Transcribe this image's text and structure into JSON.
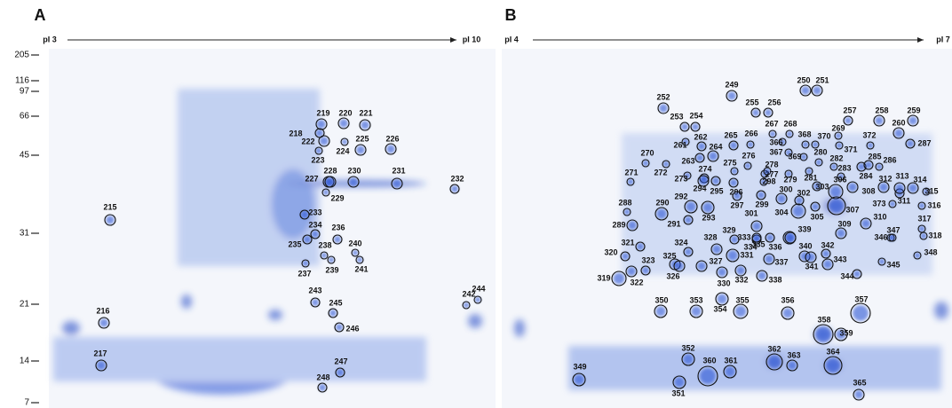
{
  "panels": [
    {
      "label": "A",
      "pi_start": "pI 3",
      "pi_end": "pI 10",
      "spots": [
        "215",
        "216",
        "217",
        "218",
        "219",
        "220",
        "221",
        "222",
        "223",
        "224",
        "225",
        "226",
        "227",
        "228",
        "229",
        "230",
        "231",
        "232",
        "233",
        "234",
        "235",
        "236",
        "237",
        "238",
        "239",
        "240",
        "241",
        "242",
        "243",
        "244",
        "245",
        "246",
        "247",
        "248"
      ]
    },
    {
      "label": "B",
      "pi_start": "pI 4",
      "pi_end": "pI 7",
      "spots": [
        "249",
        "250",
        "251",
        "252",
        "253",
        "254",
        "255",
        "256",
        "257",
        "258",
        "259",
        "260",
        "261",
        "262",
        "263",
        "264",
        "265",
        "266",
        "267",
        "268",
        "269",
        "270",
        "271",
        "272",
        "273",
        "274",
        "275",
        "276",
        "277",
        "278",
        "279",
        "280",
        "281",
        "282",
        "283",
        "284",
        "285",
        "286",
        "287",
        "288",
        "289",
        "290",
        "291",
        "292",
        "293",
        "294",
        "295",
        "296",
        "297",
        "298",
        "299",
        "300",
        "301",
        "302",
        "303",
        "304",
        "305",
        "306",
        "307",
        "308",
        "309",
        "310",
        "311",
        "312",
        "313",
        "314",
        "315",
        "316",
        "317",
        "318",
        "319",
        "320",
        "321",
        "322",
        "323",
        "324",
        "325",
        "326",
        "327",
        "328",
        "329",
        "330",
        "331",
        "332",
        "333",
        "334",
        "335",
        "336",
        "337",
        "338",
        "339",
        "340",
        "341",
        "342",
        "343",
        "344",
        "345",
        "346",
        "347",
        "348",
        "349",
        "350",
        "351",
        "352",
        "353",
        "354",
        "355",
        "356",
        "357",
        "358",
        "359",
        "360",
        "361",
        "362",
        "363",
        "364",
        "365",
        "366",
        "367",
        "368",
        "369",
        "370",
        "371",
        "372",
        "373"
      ]
    }
  ],
  "mw_markers": [
    "205",
    "116",
    "97",
    "66",
    "45",
    "31",
    "21",
    "14",
    "7"
  ]
}
